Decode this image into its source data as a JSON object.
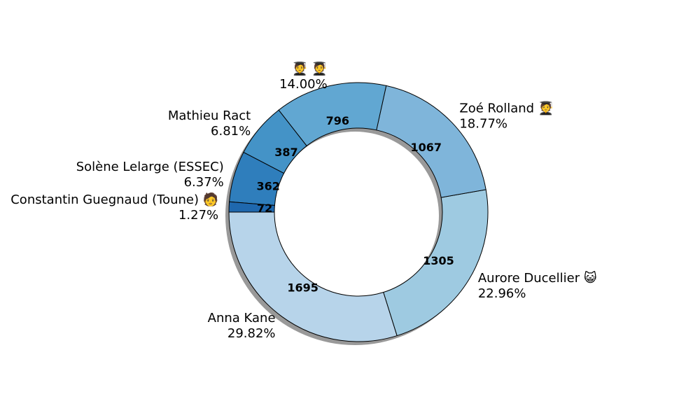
{
  "chart_data": {
    "type": "pie",
    "variant": "donut",
    "shadow": true,
    "start_angle_deg": 180,
    "direction": "counterclockwise",
    "slices": [
      {
        "label": "Anna Kane",
        "value": 1695,
        "percent": "29.82%",
        "color": "#b7d4ea"
      },
      {
        "label": "Aurore Ducellier 😺",
        "value": 1305,
        "percent": "22.96%",
        "color": "#9ecae1"
      },
      {
        "label": "Zoé Rolland 🧑‍🎓",
        "value": 1067,
        "percent": "18.77%",
        "color": "#7fb5da"
      },
      {
        "label": "🧑‍🎓 🧑‍🎓",
        "value": 796,
        "percent": "14.00%",
        "color": "#61a7d2"
      },
      {
        "label": "Mathieu Ract",
        "value": 387,
        "percent": "6.81%",
        "color": "#4493c7"
      },
      {
        "label": "Solène Lelarge (ESSEC)",
        "value": 362,
        "percent": "6.37%",
        "color": "#2f7ebc"
      },
      {
        "label": "Constantin Guegnaud (Toune) 🧑",
        "value": 72,
        "percent": "1.27%",
        "color": "#1f68ae"
      }
    ]
  }
}
